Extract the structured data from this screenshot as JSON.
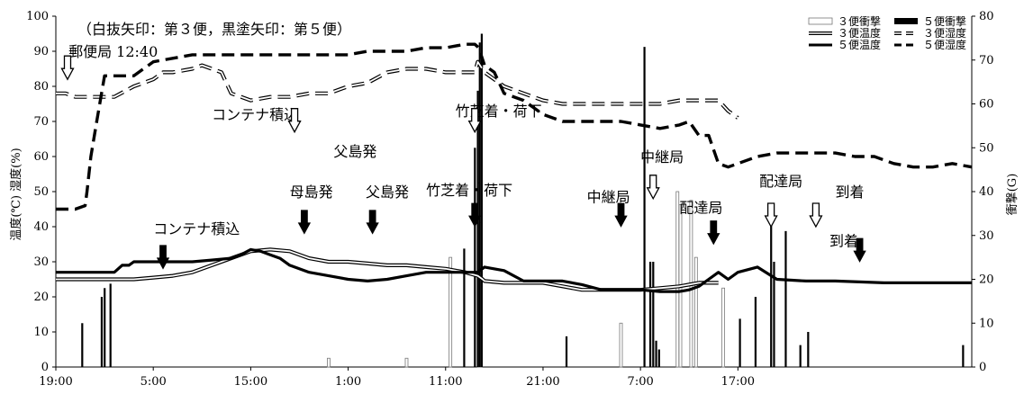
{
  "chart_data": {
    "type": "line",
    "note": "（白抜矢印：第３便，黒塗矢印：第５便）",
    "ylabel_left": "温度(℃) 湿度(%)",
    "ylabel_right": "衝撃(G)",
    "ylim_left": [
      0,
      100
    ],
    "ylim_right": [
      0,
      80
    ],
    "yticks_left": [
      "0",
      "10",
      "20",
      "30",
      "40",
      "50",
      "60",
      "70",
      "80",
      "90",
      "100"
    ],
    "yticks_right": [
      "0",
      "10",
      "20",
      "30",
      "40",
      "50",
      "60",
      "70",
      "80"
    ],
    "x_range_hours": [
      0,
      94
    ],
    "xticks": [
      {
        "label": "19:00",
        "h": 0
      },
      {
        "label": "5:00",
        "h": 10
      },
      {
        "label": "15:00",
        "h": 20
      },
      {
        "label": "1:00",
        "h": 30
      },
      {
        "label": "11:00",
        "h": 40
      },
      {
        "label": "21:00",
        "h": 50
      },
      {
        "label": "7:00",
        "h": 60
      },
      {
        "label": "17:00",
        "h": 70
      }
    ],
    "legend": [
      {
        "label": "３便衝撃",
        "style": "hollow-bar"
      },
      {
        "label": "５便衝撃",
        "style": "solid-bar"
      },
      {
        "label": "３便温度",
        "style": "double-line"
      },
      {
        "label": "３便湿度",
        "style": "hollow-dash"
      },
      {
        "label": "５便温度",
        "style": "thick-line"
      },
      {
        "label": "５便湿度",
        "style": "thick-dash"
      }
    ],
    "series": [
      {
        "name": "３便温度",
        "axis": "left",
        "x": [
          0,
          4,
          8,
          10,
          12,
          14,
          16,
          18,
          20,
          22,
          24,
          26,
          28,
          30,
          32,
          34,
          36,
          38,
          40,
          42,
          43.3,
          43.8,
          44,
          46,
          48,
          50,
          52,
          54,
          56,
          58,
          60,
          62,
          64,
          66,
          67,
          68
        ],
        "values": [
          25,
          25,
          25,
          25.5,
          26,
          27,
          29,
          31,
          33,
          33.5,
          33,
          31,
          30,
          30,
          29.5,
          29,
          29,
          28.5,
          28,
          27,
          26,
          25,
          24.5,
          24,
          24,
          24,
          23,
          22,
          22,
          22,
          22,
          22.5,
          23,
          24,
          24,
          24
        ]
      },
      {
        "name": "５便温度",
        "axis": "left",
        "x": [
          0,
          6,
          6.8,
          7.5,
          8,
          10,
          12,
          14,
          16,
          18,
          19,
          20,
          21,
          22,
          23,
          24,
          26,
          28,
          30,
          32,
          34,
          36,
          38,
          40,
          42,
          43.3,
          44,
          46,
          48,
          50,
          52,
          54,
          56,
          58,
          60,
          62,
          64,
          65,
          66,
          67,
          68,
          69,
          70,
          72,
          74,
          77,
          80,
          85,
          90,
          94
        ],
        "values": [
          27,
          27,
          29,
          29,
          30,
          30,
          30,
          30,
          30.5,
          31,
          32,
          33.5,
          33,
          32,
          31,
          29,
          27,
          26,
          25,
          24.5,
          25,
          26,
          27,
          27,
          27,
          27,
          28.5,
          27.5,
          24.5,
          24.5,
          24.5,
          23.5,
          22,
          22,
          22,
          21.5,
          21.5,
          22,
          23,
          25,
          27,
          25,
          27,
          28.5,
          25,
          24.5,
          24.5,
          24,
          24,
          24
        ]
      },
      {
        "name": "３便湿度",
        "axis": "left",
        "x": [
          0,
          1,
          2,
          4,
          6,
          8,
          10,
          11,
          12,
          14,
          15,
          16,
          17,
          18,
          20,
          22,
          24,
          26,
          28,
          30,
          32,
          34,
          36,
          38,
          40,
          42,
          43,
          43.3,
          44,
          46,
          48,
          50,
          52,
          54,
          56,
          58,
          60,
          62,
          64,
          66,
          68,
          69,
          70
        ],
        "values": [
          78,
          78,
          77,
          77,
          77,
          80,
          82,
          84,
          84,
          85,
          86,
          85,
          84,
          78,
          76,
          77,
          77,
          78,
          78,
          80,
          81,
          84,
          85,
          85,
          84,
          84,
          84,
          87,
          84,
          80,
          78,
          76,
          75,
          75,
          75,
          75,
          75,
          75,
          76,
          76,
          76,
          73,
          71
        ]
      },
      {
        "name": "５便湿度",
        "axis": "left",
        "x": [
          0,
          1,
          2,
          3,
          3.2,
          3.6,
          4.2,
          5,
          6,
          7,
          8,
          9,
          10,
          12,
          14,
          16,
          18,
          20,
          22,
          24,
          26,
          28,
          30,
          32,
          34,
          36,
          38,
          40,
          42,
          43,
          43.4,
          44,
          45,
          46,
          48,
          50,
          52,
          54,
          56,
          58,
          60,
          62,
          64,
          65,
          66,
          67,
          68,
          69,
          70,
          72,
          74,
          76,
          78,
          80,
          82,
          84,
          86,
          88,
          90,
          92,
          94
        ],
        "values": [
          45,
          45,
          45,
          46,
          50,
          60,
          70,
          83,
          83,
          83,
          83,
          85,
          87,
          88,
          89,
          89,
          89,
          89,
          89,
          89,
          89,
          89,
          89,
          90,
          90,
          90,
          91,
          91,
          92,
          92,
          91,
          86,
          84,
          78,
          76,
          72,
          70,
          70,
          70,
          70,
          69,
          68,
          69,
          70,
          66,
          66,
          58,
          57,
          58,
          60,
          61,
          61,
          61,
          61,
          60,
          60,
          58,
          57,
          57,
          58,
          57
        ]
      }
    ],
    "impacts_3": [
      {
        "x": 28,
        "g": 2
      },
      {
        "x": 36,
        "g": 2
      },
      {
        "x": 40.5,
        "g": 25
      },
      {
        "x": 43.4,
        "g": 42
      },
      {
        "x": 43.6,
        "g": 33
      },
      {
        "x": 58,
        "g": 10
      },
      {
        "x": 63.8,
        "g": 40
      },
      {
        "x": 64.1,
        "g": 37
      },
      {
        "x": 65.2,
        "g": 38
      },
      {
        "x": 65.7,
        "g": 25
      },
      {
        "x": 68.5,
        "g": 18
      }
    ],
    "impacts_5": [
      {
        "x": 2.7,
        "g": 10
      },
      {
        "x": 4.7,
        "g": 16
      },
      {
        "x": 5,
        "g": 18
      },
      {
        "x": 5.6,
        "g": 19
      },
      {
        "x": 41.9,
        "g": 27
      },
      {
        "x": 43,
        "g": 50
      },
      {
        "x": 43.3,
        "g": 63
      },
      {
        "x": 43.5,
        "g": 74
      },
      {
        "x": 43.7,
        "g": 76
      },
      {
        "x": 52.4,
        "g": 7
      },
      {
        "x": 60.4,
        "g": 73
      },
      {
        "x": 61,
        "g": 24
      },
      {
        "x": 61.3,
        "g": 24
      },
      {
        "x": 61.6,
        "g": 6
      },
      {
        "x": 61.9,
        "g": 4
      },
      {
        "x": 70.2,
        "g": 11
      },
      {
        "x": 71.8,
        "g": 16
      },
      {
        "x": 73.4,
        "g": 34
      },
      {
        "x": 73.7,
        "g": 24
      },
      {
        "x": 74.9,
        "g": 31
      },
      {
        "x": 76.4,
        "g": 5
      },
      {
        "x": 77.2,
        "g": 8
      },
      {
        "x": 93.1,
        "g": 5
      }
    ],
    "annotations": [
      {
        "text": "郵便局 12:40",
        "x": 1.3,
        "y": 88.5,
        "arrow": "hollow",
        "ax": 1.2,
        "ay": 82
      },
      {
        "text": "コンテナ積込",
        "x": 16,
        "y": 70.5,
        "arrow": "hollow",
        "ax": 24.5,
        "ay": 67
      },
      {
        "text": "父島発",
        "x": 28.5,
        "y": 60
      },
      {
        "text": "竹芝着・荷下",
        "x": 41,
        "y": 71.5,
        "arrow": "hollow",
        "ax": 43,
        "ay": 67
      },
      {
        "text": "中継局",
        "x": 60,
        "y": 58.5,
        "arrow": "hollow",
        "ax": 61.3,
        "ay": 48
      },
      {
        "text": "配達局",
        "x": 72.2,
        "y": 51.5,
        "arrow": "hollow",
        "ax": 73.4,
        "ay": 40
      },
      {
        "text": "到着",
        "x": 80,
        "y": 48.5,
        "arrow": "hollow",
        "ax": 78,
        "ay": 40
      },
      {
        "text": "母島発",
        "x": 24,
        "y": 48.5,
        "arrow": "solid",
        "ax": 25.5,
        "ay": 38
      },
      {
        "text": "父島発",
        "x": 31.8,
        "y": 48.5,
        "arrow": "solid",
        "ax": 32.5,
        "ay": 38
      },
      {
        "text": "コンテナ積込",
        "x": 10,
        "y": 38,
        "arrow": "solid",
        "ax": 11,
        "ay": 28
      },
      {
        "text": "竹芝着・荷下",
        "x": 38,
        "y": 49,
        "arrow": "solid",
        "ax": 43,
        "ay": 40
      },
      {
        "text": "中継局",
        "x": 54.5,
        "y": 47,
        "arrow": "solid",
        "ax": 58,
        "ay": 40
      },
      {
        "text": "配達局",
        "x": 64,
        "y": 44,
        "arrow": "solid",
        "ax": 67.5,
        "ay": 35
      },
      {
        "text": "到着",
        "x": 79.4,
        "y": 34.5,
        "arrow": "solid",
        "ax": 82.5,
        "ay": 30
      }
    ]
  }
}
